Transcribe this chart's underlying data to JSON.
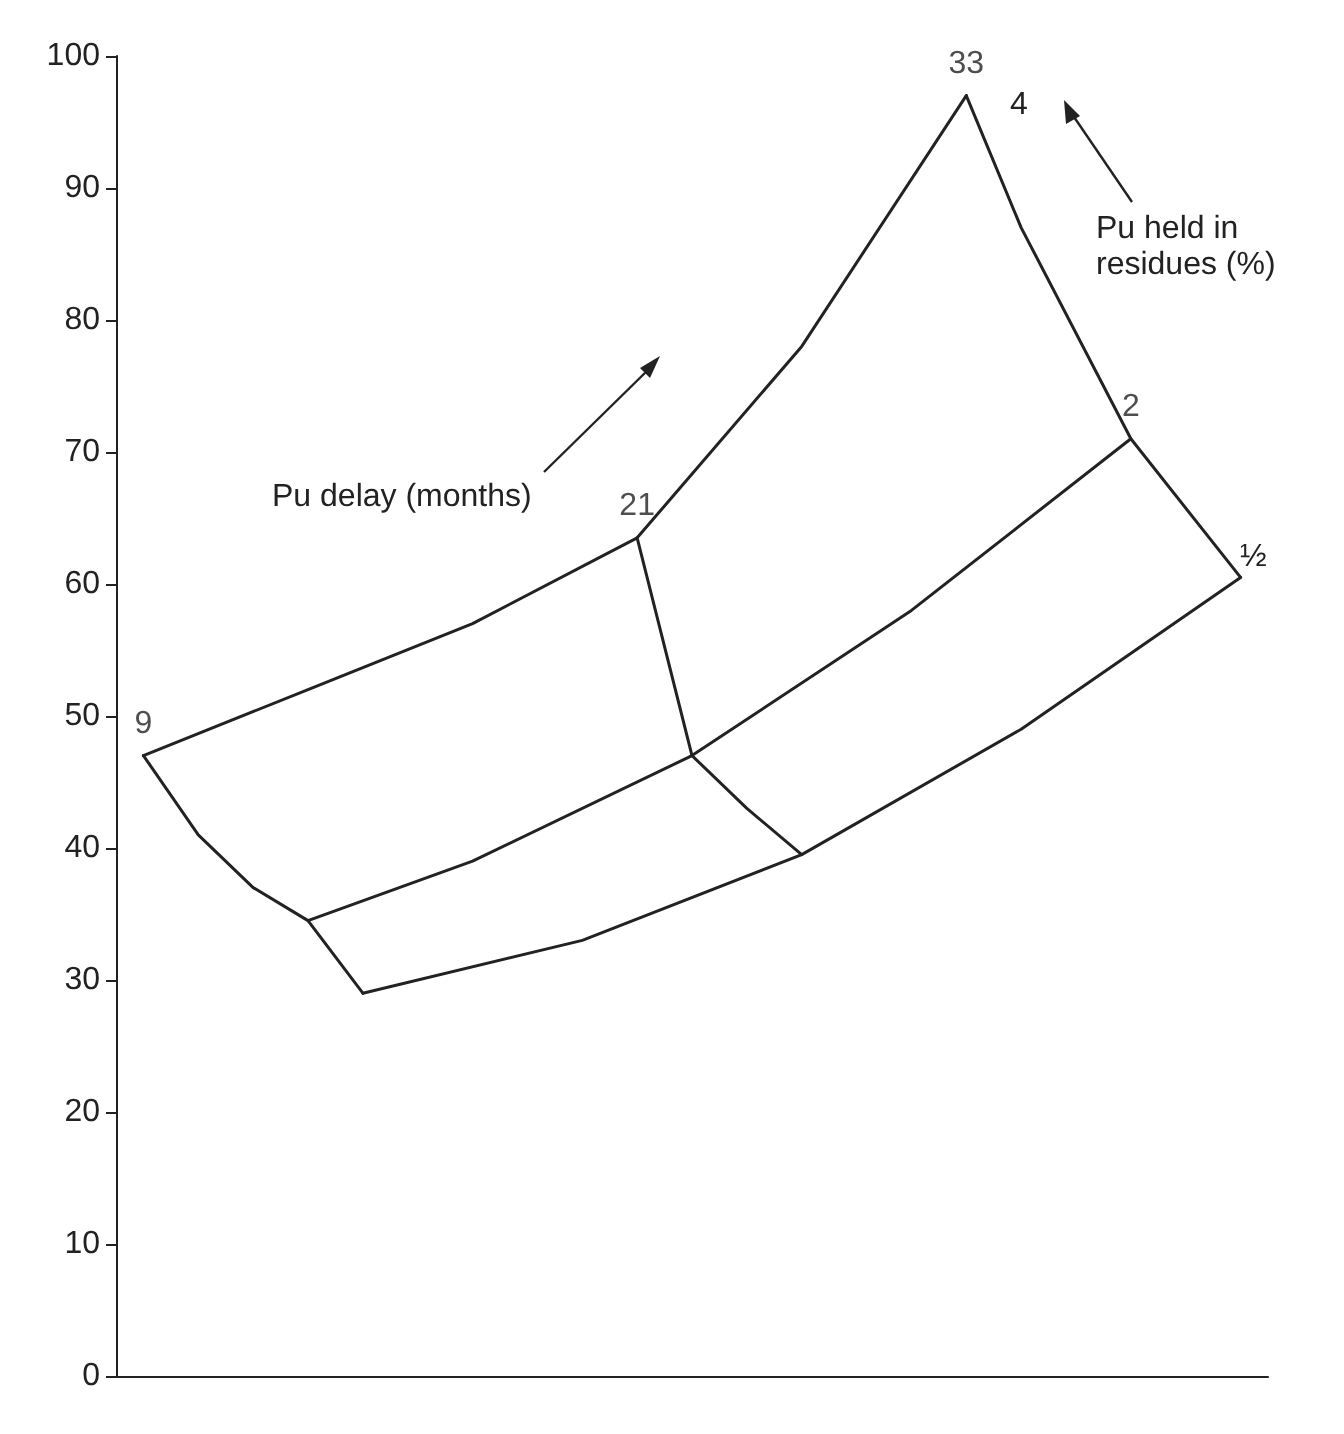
{
  "chart_data": {
    "type": "line",
    "categories": [
      null,
      null,
      null,
      null,
      null,
      null,
      null,
      null,
      null,
      null,
      null,
      null,
      null,
      null,
      null,
      null,
      null,
      null,
      null,
      null,
      null
    ],
    "ylim": [
      0,
      100
    ],
    "yticks": [
      0,
      10,
      20,
      30,
      40,
      50,
      60,
      70,
      80,
      90,
      100
    ],
    "tick_labels": "y",
    "grid": false,
    "marker": "none",
    "line_style": "solid",
    "series": [
      {
        "color": "#222222",
        "values": [
          47,
          null,
          null,
          52,
          null,
          null,
          57,
          null,
          null,
          63.5,
          null,
          null,
          78,
          null,
          null,
          97,
          null,
          null,
          null,
          null,
          null
        ]
      },
      {
        "color": "#222222",
        "values": [
          null,
          null,
          null,
          34.5,
          null,
          null,
          39,
          null,
          null,
          null,
          47,
          null,
          null,
          null,
          58,
          null,
          null,
          null,
          71,
          null,
          null
        ]
      },
      {
        "color": "#222222",
        "values": [
          null,
          null,
          null,
          null,
          29,
          null,
          null,
          null,
          33,
          null,
          null,
          null,
          39.5,
          null,
          null,
          null,
          49,
          null,
          null,
          null,
          60.5
        ]
      },
      {
        "color": "#222222",
        "values": [
          47,
          41,
          37,
          34.5,
          29,
          null,
          null,
          null,
          null,
          null,
          null,
          null,
          null,
          null,
          null,
          null,
          null,
          null,
          null,
          null,
          null
        ]
      },
      {
        "color": "#222222",
        "values": [
          null,
          null,
          null,
          null,
          null,
          null,
          null,
          null,
          null,
          63.5,
          47,
          43,
          39.5,
          null,
          null,
          null,
          null,
          null,
          null,
          null,
          null
        ]
      },
      {
        "color": "#222222",
        "values": [
          null,
          null,
          null,
          null,
          null,
          null,
          null,
          null,
          null,
          null,
          null,
          null,
          null,
          null,
          null,
          97,
          87,
          null,
          71,
          null,
          60.5
        ]
      }
    ],
    "annotations": [
      {
        "text": "9",
        "y": 47
      },
      {
        "text": "21",
        "y": 63.5
      },
      {
        "text": "33",
        "y": 97
      },
      {
        "text": "2",
        "y": 71
      },
      "4",
      "½",
      "Pu delay (months)",
      "Pu held in residues (%)"
    ]
  }
}
